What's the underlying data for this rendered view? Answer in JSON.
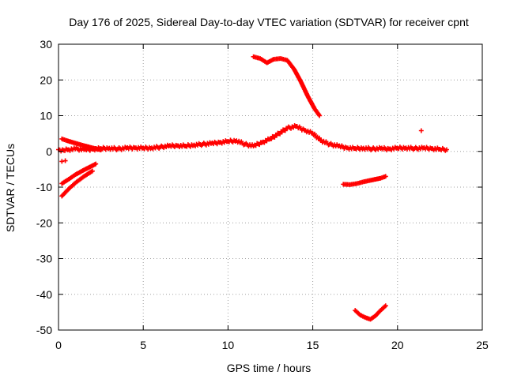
{
  "chart_data": {
    "type": "scatter",
    "title": "Day 176 of 2025, Sidereal Day-to-day VTEC variation (SDTVAR) for receiver cpnt",
    "xlabel": "GPS time / hours",
    "ylabel": "SDTVAR / TECUs",
    "xlim": [
      0,
      25
    ],
    "ylim": [
      -50,
      30
    ],
    "xticks": [
      0,
      5,
      10,
      15,
      20,
      25
    ],
    "yticks": [
      -50,
      -40,
      -30,
      -20,
      -10,
      0,
      10,
      20,
      30
    ],
    "grid": true,
    "marker": "+",
    "series": [
      {
        "name": "main-band",
        "color": "#ff0000",
        "x": [
          0.0,
          0.3,
          0.6,
          1.0,
          1.5,
          2.0,
          2.5,
          3.0,
          3.5,
          4.0,
          4.5,
          5.0,
          5.5,
          6.0,
          6.5,
          7.0,
          7.5,
          8.0,
          8.5,
          9.0,
          9.5,
          10.0,
          10.5,
          11.0,
          11.5,
          12.0,
          12.5,
          13.0,
          13.5,
          14.0,
          14.5,
          15.0,
          15.5,
          16.0,
          16.5,
          17.0,
          17.5,
          18.0,
          18.5,
          19.0,
          19.5,
          20.0,
          20.5,
          21.0,
          21.5,
          22.0,
          22.5,
          22.9
        ],
        "y": [
          0.5,
          0.3,
          0.5,
          0.7,
          0.5,
          0.6,
          0.8,
          0.9,
          0.7,
          0.9,
          1.0,
          0.9,
          1.0,
          1.2,
          1.5,
          1.6,
          1.5,
          1.8,
          2.0,
          2.2,
          2.5,
          2.8,
          3.0,
          2.0,
          1.5,
          2.5,
          3.5,
          5.0,
          6.5,
          7.0,
          6.0,
          5.0,
          3.0,
          2.0,
          1.5,
          1.0,
          0.8,
          0.9,
          0.7,
          0.8,
          0.7,
          0.9,
          1.0,
          0.8,
          0.9,
          0.8,
          0.6,
          0.5
        ]
      },
      {
        "name": "upper-arc",
        "color": "#ff0000",
        "x": [
          11.5,
          11.9,
          12.3,
          12.7,
          13.1,
          13.5,
          13.9,
          14.3,
          14.7,
          15.1,
          15.4
        ],
        "y": [
          26.5,
          26.0,
          24.8,
          25.8,
          26.0,
          25.5,
          23.0,
          19.5,
          15.5,
          12.0,
          10.0
        ]
      },
      {
        "name": "early-arc",
        "color": "#ff0000",
        "x": [
          0.2,
          0.5,
          1.0,
          1.5,
          2.0,
          2.5
        ],
        "y": [
          3.5,
          3.0,
          2.3,
          1.6,
          1.0,
          0.4
        ]
      },
      {
        "name": "lower-arc-a",
        "color": "#ff0000",
        "x": [
          0.2,
          0.6,
          1.0,
          1.5,
          2.0,
          2.2
        ],
        "y": [
          -9.0,
          -7.8,
          -6.5,
          -5.2,
          -4.0,
          -3.5
        ]
      },
      {
        "name": "lower-arc-b",
        "color": "#ff0000",
        "x": [
          0.2,
          0.6,
          1.0,
          1.5,
          2.0
        ],
        "y": [
          -12.5,
          -10.5,
          -8.8,
          -7.0,
          -5.5
        ]
      },
      {
        "name": "mid-segment",
        "color": "#ff0000",
        "x": [
          16.8,
          17.2,
          17.6,
          18.0,
          18.5,
          19.0,
          19.3
        ],
        "y": [
          -9.2,
          -9.3,
          -9.0,
          -8.5,
          -8.0,
          -7.5,
          -7.0
        ]
      },
      {
        "name": "deep-arc",
        "color": "#ff0000",
        "x": [
          17.5,
          17.8,
          18.1,
          18.4,
          18.7,
          19.0,
          19.3
        ],
        "y": [
          -44.5,
          -45.8,
          -46.5,
          -47.0,
          -46.0,
          -44.5,
          -43.2
        ]
      },
      {
        "name": "isolated",
        "color": "#ff0000",
        "x": [
          0.2,
          0.4,
          21.4
        ],
        "y": [
          -2.8,
          -2.6,
          5.8
        ]
      }
    ]
  }
}
